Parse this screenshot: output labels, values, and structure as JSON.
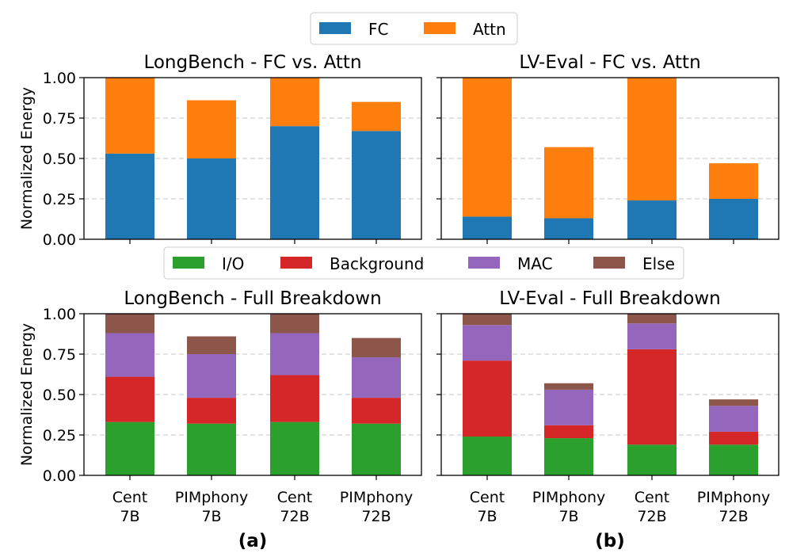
{
  "figure": {
    "top_legend": [
      {
        "label": "FC",
        "color": "#1f77b4"
      },
      {
        "label": "Attn",
        "color": "#ff7f0e"
      }
    ],
    "bottom_legend": [
      {
        "label": "I/O",
        "color": "#2ca02c"
      },
      {
        "label": "Background",
        "color": "#d62728"
      },
      {
        "label": "MAC",
        "color": "#9467bd"
      },
      {
        "label": "Else",
        "color": "#8c564b"
      }
    ],
    "panel_labels": [
      "(a)",
      "(b)"
    ],
    "ylabel": "Normalized Energy",
    "yticks": [
      "0.00",
      "0.25",
      "0.50",
      "0.75",
      "1.00"
    ],
    "xtick_labels": [
      [
        "Cent",
        "7B"
      ],
      [
        "PIMphony",
        "7B"
      ],
      [
        "Cent",
        "72B"
      ],
      [
        "PIMphony",
        "72B"
      ]
    ]
  },
  "chart_data": [
    {
      "type": "bar",
      "stacked": true,
      "title": "LongBench - FC vs. Attn",
      "ylabel": "Normalized Energy",
      "ylim": [
        0,
        1
      ],
      "categories": [
        "Cent 7B",
        "PIMphony 7B",
        "Cent 72B",
        "PIMphony 72B"
      ],
      "series": [
        {
          "name": "FC",
          "color": "#1f77b4",
          "values": [
            0.53,
            0.5,
            0.7,
            0.67
          ]
        },
        {
          "name": "Attn",
          "color": "#ff7f0e",
          "values": [
            0.47,
            0.36,
            0.3,
            0.18
          ]
        }
      ]
    },
    {
      "type": "bar",
      "stacked": true,
      "title": "LV-Eval - FC vs. Attn",
      "ylim": [
        0,
        1
      ],
      "categories": [
        "Cent 7B",
        "PIMphony 7B",
        "Cent 72B",
        "PIMphony 72B"
      ],
      "series": [
        {
          "name": "FC",
          "color": "#1f77b4",
          "values": [
            0.14,
            0.13,
            0.24,
            0.25
          ]
        },
        {
          "name": "Attn",
          "color": "#ff7f0e",
          "values": [
            0.86,
            0.44,
            0.76,
            0.22
          ]
        }
      ]
    },
    {
      "type": "bar",
      "stacked": true,
      "title": "LongBench - Full Breakdown",
      "ylabel": "Normalized Energy",
      "ylim": [
        0,
        1
      ],
      "categories": [
        "Cent 7B",
        "PIMphony 7B",
        "Cent 72B",
        "PIMphony 72B"
      ],
      "series": [
        {
          "name": "I/O",
          "color": "#2ca02c",
          "values": [
            0.33,
            0.32,
            0.33,
            0.32
          ]
        },
        {
          "name": "Background",
          "color": "#d62728",
          "values": [
            0.28,
            0.16,
            0.29,
            0.16
          ]
        },
        {
          "name": "MAC",
          "color": "#9467bd",
          "values": [
            0.27,
            0.27,
            0.26,
            0.25
          ]
        },
        {
          "name": "Else",
          "color": "#8c564b",
          "values": [
            0.12,
            0.11,
            0.12,
            0.12
          ]
        }
      ]
    },
    {
      "type": "bar",
      "stacked": true,
      "title": "LV-Eval - Full Breakdown",
      "ylim": [
        0,
        1
      ],
      "categories": [
        "Cent 7B",
        "PIMphony 7B",
        "Cent 72B",
        "PIMphony 72B"
      ],
      "series": [
        {
          "name": "I/O",
          "color": "#2ca02c",
          "values": [
            0.24,
            0.23,
            0.19,
            0.19
          ]
        },
        {
          "name": "Background",
          "color": "#d62728",
          "values": [
            0.47,
            0.08,
            0.59,
            0.08
          ]
        },
        {
          "name": "MAC",
          "color": "#9467bd",
          "values": [
            0.22,
            0.22,
            0.16,
            0.16
          ]
        },
        {
          "name": "Else",
          "color": "#8c564b",
          "values": [
            0.07,
            0.04,
            0.06,
            0.04
          ]
        }
      ]
    }
  ]
}
